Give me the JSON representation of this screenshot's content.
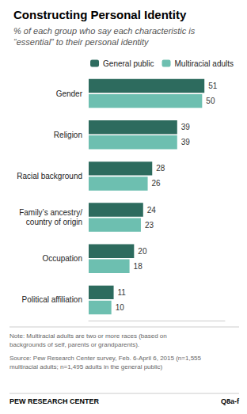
{
  "chart_data": {
    "type": "bar",
    "orientation": "horizontal",
    "title": "Constructing Personal Identity",
    "subtitle": "% of each group who say each characteristic is\n“essential” to their personal identity",
    "categories": [
      "Gender",
      "Religion",
      "Racial background",
      "Family’s ancestry/\ncountry of origin",
      "Occupation",
      "Political affiliation"
    ],
    "series": [
      {
        "name": "General public",
        "color": "#2d6b5e",
        "values": [
          51,
          39,
          28,
          24,
          20,
          11
        ]
      },
      {
        "name": "Multiracial adults",
        "color": "#6dbfb0",
        "values": [
          50,
          39,
          26,
          23,
          18,
          10
        ]
      }
    ],
    "xlim": [
      0,
      60
    ],
    "xticks": [],
    "tick_labels": "y",
    "grid": false,
    "legend": "upper right",
    "data_labels": true,
    "note": "Note: Multiracial adults are two or more races (based on\nbackgrounds of self, parents or grandparents).",
    "source": "Source: Pew Research Center survey, Feb. 6-April 6, 2015 (n=1,555\nmultiracial adults; n=1,495 adults in the general public)",
    "annotations": [
      "PEW RESEARCH CENTER",
      "Q8a-f"
    ]
  }
}
